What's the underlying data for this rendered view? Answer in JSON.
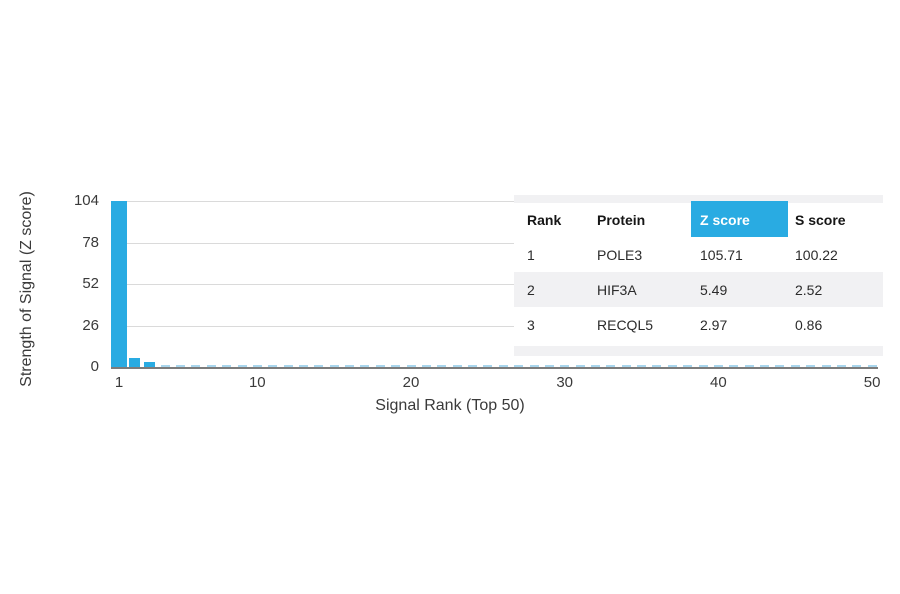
{
  "chart_data": {
    "type": "bar",
    "title": "",
    "xlabel": "Signal Rank (Top 50)",
    "ylabel": "Strength of Signal (Z score)",
    "ylim": [
      0,
      104
    ],
    "xlim": [
      1,
      50
    ],
    "grid": "horizontal",
    "y_ticks": [
      104,
      78,
      52,
      26,
      0
    ],
    "x_ticks": [
      1,
      10,
      20,
      30,
      40,
      50
    ],
    "note_top_bar_clipped_at": 104,
    "values": [
      105.71,
      5.49,
      2.97,
      1.4,
      1.35,
      1.3,
      1.28,
      1.25,
      1.22,
      1.2,
      1.18,
      1.16,
      1.15,
      1.13,
      1.12,
      1.1,
      1.09,
      1.08,
      1.07,
      1.06,
      1.05,
      1.04,
      1.03,
      1.02,
      1.01,
      1.0,
      1.0,
      0.99,
      0.98,
      0.97,
      0.96,
      0.95,
      0.95,
      0.94,
      0.93,
      0.93,
      0.92,
      0.91,
      0.91,
      0.9,
      0.9,
      0.89,
      0.89,
      0.88,
      0.88,
      0.87,
      0.87,
      0.86,
      0.86,
      0.85
    ]
  },
  "table": {
    "headers": [
      "Rank",
      "Protein",
      "Z score",
      "S score"
    ],
    "highlighted_header": "Z score",
    "rows": [
      [
        "1",
        "POLE3",
        "105.71",
        "100.22"
      ],
      [
        "2",
        "HIF3A",
        "5.49",
        "2.52"
      ],
      [
        "3",
        "RECQL5",
        "2.97",
        "0.86"
      ]
    ]
  },
  "colors": {
    "bar_primary": "#29ABE2",
    "bar_light": "#A9D6ED",
    "highlight_bg": "#29ABE2",
    "grid": "#DADADA",
    "axis_line": "#7C7C7C",
    "axis_text": "#3A3A3A",
    "row_alt_bg": "#F1F1F3",
    "table_bg": "#FFFFFF"
  }
}
